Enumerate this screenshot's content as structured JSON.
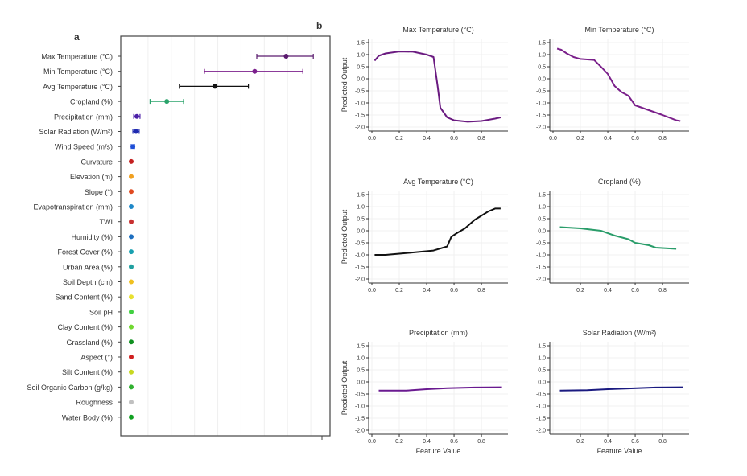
{
  "chart_data": [
    {
      "panel_label": "a",
      "type": "scatter",
      "grid": true,
      "xlim": [
        0,
        1
      ],
      "categories": [
        "Max Temperature (°C)",
        "Min Temperature (°C)",
        "Avg Temperature (°C)",
        "Cropland (%)",
        "Precipitation (mm)",
        "Solar Radiation (W/m²)",
        "Wind Speed (m/s)",
        "Curvature",
        "Elevation (m)",
        "Slope (°)",
        "Evapotranspiration (mm)",
        "TWI",
        "Humidity (%)",
        "Forest Cover (%)",
        "Urban Area (%)",
        "Soil Depth (cm)",
        "Sand Content (%)",
        "Soil pH",
        "Clay Content (%)",
        "Grassland (%)",
        "Aspect (°)",
        "Silt Content (%)",
        "Soil Organic Carbon (g/kg)",
        "Roughness",
        "Water Body (%)"
      ],
      "values": [
        0.79,
        0.64,
        0.45,
        0.22,
        0.077,
        0.073,
        0.058,
        0.05,
        0.05,
        0.05,
        0.05,
        0.05,
        0.05,
        0.05,
        0.05,
        0.05,
        0.05,
        0.05,
        0.05,
        0.05,
        0.05,
        0.05,
        0.05,
        0.05,
        0.05
      ],
      "err_low": [
        0.65,
        0.4,
        0.28,
        0.14,
        0.062,
        0.058,
        0.05,
        null,
        null,
        null,
        null,
        null,
        null,
        null,
        null,
        null,
        null,
        null,
        null,
        null,
        null,
        null,
        null,
        null,
        null
      ],
      "err_high": [
        0.92,
        0.87,
        0.61,
        0.3,
        0.092,
        0.088,
        0.066,
        null,
        null,
        null,
        null,
        null,
        null,
        null,
        null,
        null,
        null,
        null,
        null,
        null,
        null,
        null,
        null,
        null,
        null
      ],
      "colors": [
        "#5a1a6e",
        "#7b1f8c",
        "#111111",
        "#2aa36b",
        "#4b1fa8",
        "#1f2ab0",
        "#1f4fd6",
        "#c42020",
        "#f0a020",
        "#e04a20",
        "#1e88c8",
        "#c83030",
        "#1e6fc0",
        "#18a0b0",
        "#20a0a0",
        "#f0c020",
        "#e8e030",
        "#40d040",
        "#70d830",
        "#109020",
        "#d02020",
        "#c8d820",
        "#30b030",
        "#c0c0c0",
        "#10a020"
      ]
    },
    {
      "panel_label": "b",
      "type": "line",
      "ylabel": "Predicted Output",
      "xlabel": "Feature Value",
      "ylim": [
        -2.0,
        1.5
      ],
      "yticks": [
        "1.5",
        "1.0",
        "0.5",
        "0.0",
        "-0.5",
        "-1.0",
        "-1.5",
        "-2.0"
      ],
      "grid": true,
      "panels": [
        {
          "title": "Max Temperature (°C)",
          "color": "#6a1a80",
          "xticks": [
            "0.0",
            "0.2",
            "0.4",
            "0.6",
            "0.8"
          ],
          "x": [
            0.02,
            0.05,
            0.1,
            0.2,
            0.3,
            0.4,
            0.45,
            0.48,
            0.5,
            0.55,
            0.6,
            0.7,
            0.8,
            0.9,
            0.94
          ],
          "y": [
            0.75,
            0.95,
            1.05,
            1.13,
            1.12,
            1.0,
            0.9,
            -0.3,
            -1.2,
            -1.6,
            -1.72,
            -1.78,
            -1.75,
            -1.65,
            -1.6
          ]
        },
        {
          "title": "Min Temperature (°C)",
          "color": "#7a1f8a",
          "xticks": [
            "0.0",
            "0.2",
            "0.4",
            "0.6",
            "0.8"
          ],
          "x": [
            0.03,
            0.06,
            0.1,
            0.15,
            0.2,
            0.3,
            0.35,
            0.4,
            0.45,
            0.5,
            0.55,
            0.6,
            0.7,
            0.8,
            0.9,
            0.93
          ],
          "y": [
            1.25,
            1.2,
            1.05,
            0.9,
            0.82,
            0.78,
            0.5,
            0.2,
            -0.3,
            -0.55,
            -0.7,
            -1.1,
            -1.3,
            -1.5,
            -1.72,
            -1.75
          ]
        },
        {
          "title": "Avg Temperature (°C)",
          "color": "#111111",
          "xticks": [
            "0.0",
            "0.2",
            "0.4",
            "0.6",
            "0.8"
          ],
          "x": [
            0.02,
            0.1,
            0.2,
            0.3,
            0.45,
            0.55,
            0.58,
            0.62,
            0.68,
            0.75,
            0.85,
            0.9,
            0.94
          ],
          "y": [
            -1.0,
            -1.0,
            -0.95,
            -0.9,
            -0.82,
            -0.65,
            -0.25,
            -0.1,
            0.1,
            0.45,
            0.8,
            0.92,
            0.92
          ]
        },
        {
          "title": "Cropland (%)",
          "color": "#2a9d6a",
          "xticks": [
            "",
            "0.2",
            "0.4",
            "0.6",
            "0.8"
          ],
          "x": [
            0.05,
            0.2,
            0.35,
            0.45,
            0.55,
            0.6,
            0.7,
            0.75,
            0.9
          ],
          "y": [
            0.15,
            0.1,
            0.0,
            -0.2,
            -0.35,
            -0.5,
            -0.6,
            -0.7,
            -0.75
          ]
        },
        {
          "title": "Precipitation (mm)",
          "color": "#6a1a90",
          "xticks": [
            "0.0",
            "0.2",
            "0.4",
            "0.6",
            "0.8"
          ],
          "x": [
            0.05,
            0.25,
            0.4,
            0.55,
            0.75,
            0.95
          ],
          "y": [
            -0.36,
            -0.36,
            -0.3,
            -0.26,
            -0.23,
            -0.22
          ]
        },
        {
          "title": "Solar Radiation (W/m²)",
          "color": "#1a1a80",
          "xticks": [
            "",
            "0.2",
            "0.4",
            "0.6",
            "0.8"
          ],
          "x": [
            0.05,
            0.25,
            0.4,
            0.55,
            0.75,
            0.95
          ],
          "y": [
            -0.36,
            -0.34,
            -0.3,
            -0.27,
            -0.23,
            -0.22
          ]
        }
      ]
    }
  ]
}
